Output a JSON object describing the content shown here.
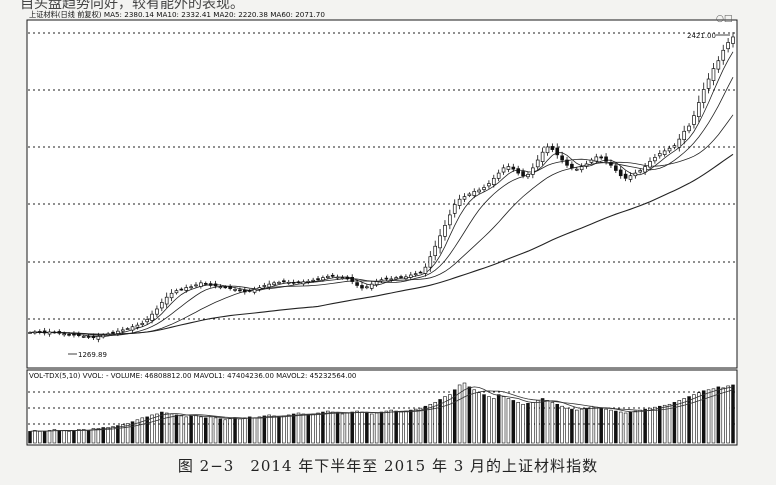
{
  "top_fragment": "自头盘趋势向好，较有能外的表现。",
  "main_header": "上证材料(日线 前复权) MA5: 2380.14 MA10: 2332.41 MA20: 2220.38 MA60: 2071.70",
  "high_label": "2421.00",
  "low_label": "1269.89",
  "volume_header": "VOL-TDX(5,10) VVOL: -  VOLUME: 46808812.00 MAVOL1: 47404236.00 MAVOL2: 45232564.00",
  "caption": "图 2−3　2014 年下半年至 2015 年 3 月的上证材料指数",
  "colors": {
    "line": "#1a1a1a",
    "grid": "#222222",
    "background": "#ffffff",
    "page": "#f3f3f1"
  },
  "chart_data": {
    "type": "candlestick",
    "series_name": "上证材料",
    "indicators": [
      "MA5",
      "MA10",
      "MA20",
      "MA60"
    ],
    "ma_values": {
      "MA5": 2380.14,
      "MA10": 2332.41,
      "MA20": 2220.38,
      "MA60": 2071.7
    },
    "price_range": [
      1269.89,
      2421.0
    ],
    "closes": [
      1290,
      1292,
      1290,
      1288,
      1292,
      1290,
      1287,
      1285,
      1282,
      1280,
      1278,
      1275,
      1272,
      1270,
      1275,
      1280,
      1285,
      1290,
      1295,
      1300,
      1305,
      1312,
      1318,
      1325,
      1340,
      1360,
      1380,
      1405,
      1425,
      1440,
      1450,
      1455,
      1462,
      1465,
      1472,
      1480,
      1475,
      1470,
      1468,
      1465,
      1462,
      1458,
      1455,
      1450,
      1445,
      1448,
      1455,
      1462,
      1470,
      1475,
      1480,
      1482,
      1484,
      1482,
      1480,
      1482,
      1484,
      1486,
      1490,
      1495,
      1500,
      1505,
      1505,
      1502,
      1500,
      1495,
      1485,
      1470,
      1460,
      1465,
      1475,
      1485,
      1492,
      1495,
      1495,
      1500,
      1502,
      1503,
      1510,
      1515,
      1520,
      1540,
      1580,
      1620,
      1660,
      1700,
      1740,
      1780,
      1800,
      1810,
      1820,
      1830,
      1835,
      1845,
      1860,
      1880,
      1900,
      1920,
      1925,
      1915,
      1900,
      1890,
      1895,
      1920,
      1950,
      1980,
      2000,
      1990,
      1970,
      1950,
      1930,
      1920,
      1915,
      1925,
      1935,
      1950,
      1962,
      1958,
      1945,
      1930,
      1910,
      1890,
      1880,
      1890,
      1900,
      1910,
      1925,
      1945,
      1960,
      1975,
      1985,
      1995,
      2005,
      2030,
      2060,
      2080,
      2120,
      2170,
      2220,
      2260,
      2300,
      2330,
      2370,
      2400,
      2421
    ],
    "volumes": [
      12,
      13,
      12,
      12,
      13,
      14,
      13,
      13,
      12,
      13,
      14,
      14,
      13,
      15,
      15,
      16,
      16,
      17,
      18,
      19,
      20,
      22,
      24,
      26,
      27,
      29,
      30,
      32,
      31,
      30,
      29,
      28,
      27,
      28,
      29,
      27,
      26,
      27,
      26,
      25,
      24,
      25,
      26,
      25,
      26,
      27,
      26,
      27,
      28,
      29,
      28,
      27,
      28,
      29,
      30,
      31,
      30,
      29,
      30,
      31,
      32,
      33,
      32,
      31,
      30,
      31,
      32,
      33,
      32,
      31,
      30,
      31,
      32,
      33,
      34,
      33,
      32,
      33,
      34,
      35,
      36,
      38,
      40,
      42,
      45,
      48,
      50,
      55,
      60,
      62,
      58,
      55,
      52,
      50,
      48,
      46,
      50,
      48,
      46,
      44,
      42,
      40,
      41,
      42,
      44,
      46,
      44,
      42,
      40,
      38,
      36,
      35,
      34,
      35,
      36,
      38,
      37,
      36,
      35,
      34,
      33,
      32,
      31,
      32,
      33,
      34,
      35,
      36,
      37,
      38,
      39,
      40,
      42,
      44,
      46,
      48,
      50,
      52,
      54,
      55,
      56,
      58,
      57,
      59,
      60
    ]
  }
}
